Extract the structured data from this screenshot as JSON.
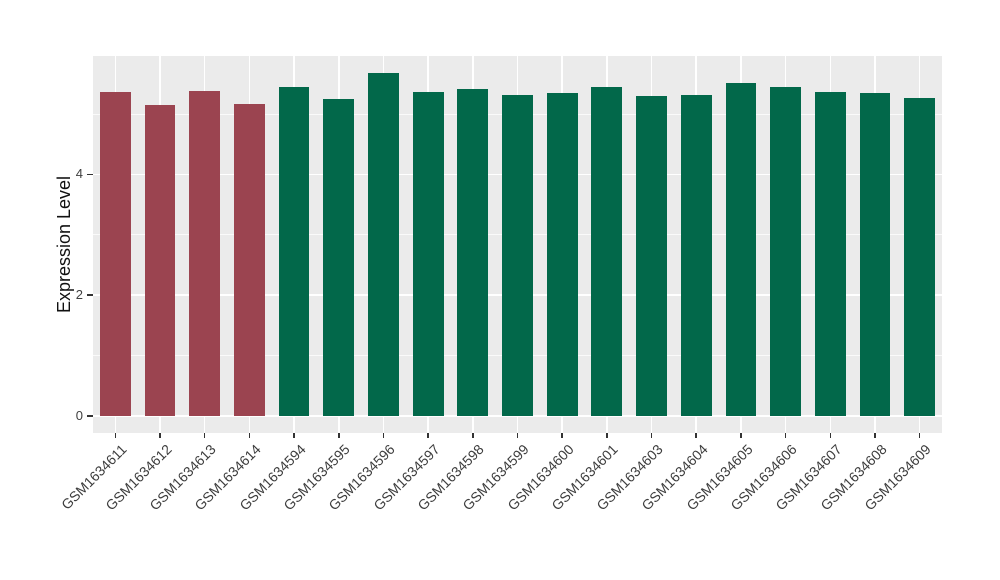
{
  "chart_data": {
    "type": "bar",
    "title": "",
    "xlabel": "",
    "ylabel": "Expression Level",
    "categories": [
      "GSM1634611",
      "GSM1634612",
      "GSM1634613",
      "GSM1634614",
      "GSM1634594",
      "GSM1634595",
      "GSM1634596",
      "GSM1634597",
      "GSM1634598",
      "GSM1634599",
      "GSM1634600",
      "GSM1634601",
      "GSM1634603",
      "GSM1634604",
      "GSM1634605",
      "GSM1634606",
      "GSM1634607",
      "GSM1634608",
      "GSM1634609"
    ],
    "values": [
      5.36,
      5.15,
      5.38,
      5.16,
      5.45,
      5.25,
      5.68,
      5.36,
      5.42,
      5.32,
      5.34,
      5.45,
      5.29,
      5.31,
      5.52,
      5.45,
      5.36,
      5.34,
      5.27
    ],
    "bar_colors": [
      "#9B4450",
      "#9B4450",
      "#9B4450",
      "#9B4450",
      "#02684A",
      "#02684A",
      "#02684A",
      "#02684A",
      "#02684A",
      "#02684A",
      "#02684A",
      "#02684A",
      "#02684A",
      "#02684A",
      "#02684A",
      "#02684A",
      "#02684A",
      "#02684A",
      "#02684A"
    ],
    "group_colors": {
      "first_four_samples": "#9B4450",
      "remaining_samples": "#02684A"
    },
    "yticks": [
      0,
      2,
      4
    ],
    "minor_yticks": [
      1,
      3,
      5
    ],
    "ylim": [
      -0.28,
      5.97
    ],
    "bar_width_fraction": 0.69,
    "x_label_rotation_deg": -45,
    "grid": "on",
    "legend": "none",
    "panel_background": "#EBEBEB",
    "grid_color": "#FFFFFF",
    "tick_mark_color": "#333333",
    "axis_text_color": "#404040",
    "figure_background": "#FFFFFF"
  }
}
